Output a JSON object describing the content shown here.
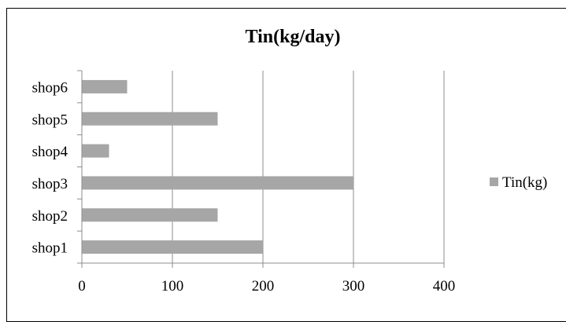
{
  "chart_data": {
    "type": "bar",
    "orientation": "horizontal",
    "title": "Tin(kg/day)",
    "categories": [
      "shop1",
      "shop2",
      "shop3",
      "shop4",
      "shop5",
      "shop6"
    ],
    "series": [
      {
        "name": "Tin(kg)",
        "values": [
          200,
          150,
          300,
          30,
          150,
          50
        ]
      }
    ],
    "xlim": [
      0,
      400
    ],
    "xticks": [
      0,
      100,
      200,
      300,
      400
    ],
    "xlabel": "",
    "ylabel": "",
    "grid": "vertical",
    "legend": "right",
    "colors": {
      "bar": "#a6a6a6",
      "grid": "#8c8c8c",
      "axis": "#8c8c8c",
      "text": "#000000"
    }
  }
}
